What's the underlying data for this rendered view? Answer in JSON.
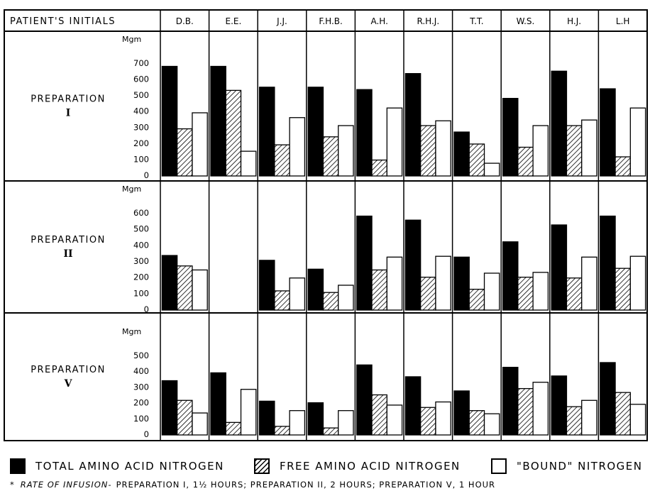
{
  "header": {
    "patients_label": "PATIENT'S INITIALS"
  },
  "chart_data": {
    "type": "bar",
    "unit": "Mgm",
    "patients": [
      "D.B.",
      "E.E.",
      "J.J.",
      "F.H.B.",
      "A.H.",
      "R.H.J.",
      "T.T.",
      "W.S.",
      "H.J.",
      "L.H"
    ],
    "series_names": [
      "TOTAL AMINO ACID NITROGEN",
      "FREE AMINO ACID NITROGEN",
      "\"BOUND\" NITROGEN"
    ],
    "panels": [
      {
        "label": "PREPARATION",
        "numeral": "I",
        "y_ticks": [
          0,
          100,
          200,
          300,
          400,
          500,
          600,
          700
        ],
        "ylim": [
          0,
          700
        ],
        "series": [
          {
            "name": "TOTAL AMINO ACID NITROGEN",
            "values": [
              680,
              680,
              550,
              550,
              535,
              635,
              270,
              480,
              650,
              540
            ]
          },
          {
            "name": "FREE AMINO ACID NITROGEN",
            "values": [
              290,
              530,
              190,
              240,
              95,
              310,
              195,
              175,
              310,
              115
            ]
          },
          {
            "name": "\"BOUND\" NITROGEN",
            "values": [
              390,
              150,
              360,
              310,
              420,
              340,
              75,
              310,
              345,
              420
            ]
          }
        ]
      },
      {
        "label": "PREPARATION",
        "numeral": "II",
        "y_ticks": [
          0,
          100,
          200,
          300,
          400,
          500,
          600
        ],
        "ylim": [
          0,
          600
        ],
        "series": [
          {
            "name": "TOTAL AMINO ACID NITROGEN",
            "values": [
              335,
              null,
              305,
              250,
              580,
              555,
              325,
              420,
              525,
              580
            ]
          },
          {
            "name": "FREE AMINO ACID NITROGEN",
            "values": [
              270,
              null,
              115,
              105,
              245,
              200,
              125,
              200,
              195,
              255
            ]
          },
          {
            "name": "\"BOUND\" NITROGEN",
            "values": [
              245,
              null,
              195,
              150,
              325,
              330,
              225,
              230,
              325,
              330
            ]
          }
        ]
      },
      {
        "label": "PREPARATION",
        "numeral": "V",
        "y_ticks": [
          0,
          100,
          200,
          300,
          400,
          500
        ],
        "ylim": [
          0,
          500
        ],
        "series": [
          {
            "name": "TOTAL AMINO ACID NITROGEN",
            "values": [
              340,
              390,
              210,
              200,
              440,
              365,
              275,
              425,
              370,
              455
            ]
          },
          {
            "name": "FREE AMINO ACID NITROGEN",
            "values": [
              215,
              75,
              50,
              40,
              250,
              170,
              150,
              290,
              175,
              265
            ]
          },
          {
            "name": "\"BOUND\" NITROGEN",
            "values": [
              135,
              285,
              150,
              150,
              185,
              205,
              130,
              330,
              215,
              190
            ]
          }
        ]
      }
    ]
  },
  "legend": {
    "total": "TOTAL AMINO ACID NITROGEN",
    "free": "FREE AMINO ACID NITROGEN",
    "bound": "\"BOUND\" NITROGEN"
  },
  "footnote": {
    "star": "*",
    "lead": "RATE OF INFUSION-",
    "text": "PREPARATION I, 1½ HOURS;  PREPARATION II, 2 HOURS;  PREPARATION V, 1 HOUR"
  },
  "colors": {
    "total": "#000000",
    "bound": "#ffffff",
    "line": "#000000"
  }
}
